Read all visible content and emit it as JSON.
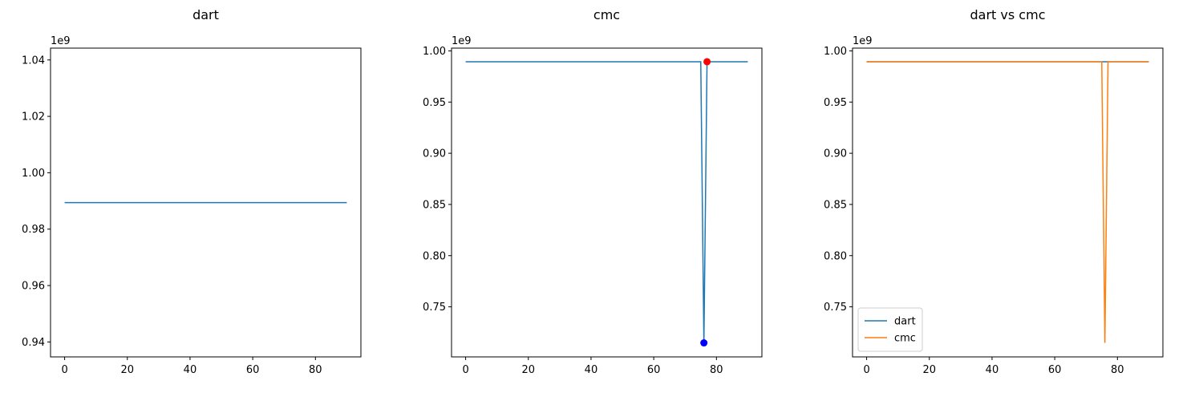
{
  "chart_data": [
    {
      "type": "line",
      "title": "dart",
      "xlabel": "",
      "ylabel": "",
      "xlim": [
        -4.5,
        94.5
      ],
      "ylim": [
        0.9347,
        1.0442
      ],
      "y_offset_label": "1e9",
      "x_ticks": [
        0,
        20,
        40,
        60,
        80
      ],
      "y_ticks": [
        0.94,
        0.96,
        0.98,
        1.0,
        1.02,
        1.04
      ],
      "y_tick_labels": [
        "0.94",
        "0.96",
        "0.98",
        "1.00",
        "1.02",
        "1.04"
      ],
      "grid": false,
      "series": [
        {
          "name": "dart",
          "color": "#1f77b4",
          "x": [
            0,
            90
          ],
          "y": [
            0.9894,
            0.9894
          ]
        }
      ],
      "markers": []
    },
    {
      "type": "line",
      "title": "cmc",
      "xlabel": "",
      "ylabel": "",
      "xlim": [
        -4.5,
        94.5
      ],
      "ylim": [
        0.7011,
        1.0027
      ],
      "y_offset_label": "1e9",
      "x_ticks": [
        0,
        20,
        40,
        60,
        80
      ],
      "y_ticks": [
        0.75,
        0.8,
        0.85,
        0.9,
        0.95,
        1.0
      ],
      "y_tick_labels": [
        "0.75",
        "0.80",
        "0.85",
        "0.90",
        "0.95",
        "1.00"
      ],
      "grid": false,
      "series": [
        {
          "name": "cmc",
          "color": "#1f77b4",
          "x": [
            0,
            75,
            76,
            77,
            90
          ],
          "y": [
            0.9894,
            0.9894,
            0.7148,
            0.9894,
            0.9894
          ]
        }
      ],
      "markers": [
        {
          "name": "min-marker",
          "x": 76,
          "y": 0.7148,
          "color": "#0000ff"
        },
        {
          "name": "max-marker",
          "x": 77,
          "y": 0.9894,
          "color": "#ff0000"
        }
      ]
    },
    {
      "type": "line",
      "title": "dart vs cmc",
      "xlabel": "",
      "ylabel": "",
      "xlim": [
        -4.5,
        94.5
      ],
      "ylim": [
        0.7011,
        1.0027
      ],
      "y_offset_label": "1e9",
      "x_ticks": [
        0,
        20,
        40,
        60,
        80
      ],
      "y_ticks": [
        0.75,
        0.8,
        0.85,
        0.9,
        0.95,
        1.0
      ],
      "y_tick_labels": [
        "0.75",
        "0.80",
        "0.85",
        "0.90",
        "0.95",
        "1.00"
      ],
      "grid": false,
      "legend": {
        "placement": "lower-left",
        "entries": [
          "dart",
          "cmc"
        ]
      },
      "series": [
        {
          "name": "dart",
          "color": "#1f77b4",
          "x": [
            0,
            90
          ],
          "y": [
            0.9894,
            0.9894
          ]
        },
        {
          "name": "cmc",
          "color": "#ff7f0e",
          "x": [
            0,
            75,
            76,
            77,
            90
          ],
          "y": [
            0.9894,
            0.9894,
            0.7148,
            0.9894,
            0.9894
          ]
        }
      ],
      "markers": []
    }
  ]
}
